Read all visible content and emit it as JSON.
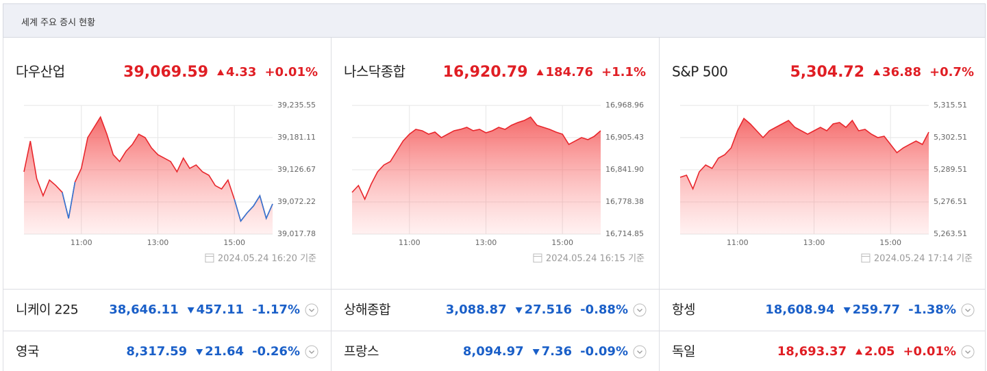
{
  "header": {
    "title": "세계 주요 증시 현황"
  },
  "panels": [
    {
      "name": "다우산업",
      "price": "39,069.59",
      "direction": "up",
      "change": "4.33",
      "percent": "+0.01%",
      "timestamp": "2024.05.24 16:20 기준"
    },
    {
      "name": "나스닥종합",
      "price": "16,920.79",
      "direction": "up",
      "change": "184.76",
      "percent": "+1.1%",
      "timestamp": "2024.05.24 16:15 기준"
    },
    {
      "name": "S&P 500",
      "price": "5,304.72",
      "direction": "up",
      "change": "36.88",
      "percent": "+0.7%",
      "timestamp": "2024.05.24 17:14 기준"
    }
  ],
  "chart_data": [
    {
      "type": "line",
      "x": [
        "09:30",
        "09:40",
        "09:50",
        "10:00",
        "10:10",
        "10:20",
        "10:30",
        "10:40",
        "10:50",
        "11:00",
        "11:10",
        "11:20",
        "11:30",
        "11:40",
        "11:50",
        "12:00",
        "12:10",
        "12:20",
        "12:30",
        "12:40",
        "12:50",
        "13:00",
        "13:10",
        "13:20",
        "13:30",
        "13:40",
        "13:50",
        "14:00",
        "14:10",
        "14:20",
        "14:30",
        "14:40",
        "14:50",
        "15:00",
        "15:10",
        "15:20",
        "15:30",
        "15:40",
        "15:50",
        "16:00"
      ],
      "series": [
        {
          "color": "#e8262c",
          "values": [
            39123.2,
            39175.3,
            39111.6,
            39082.7,
            39109.3,
            39100.0,
            39088.5,
            39044.4,
            39105.8,
            39129.0,
            39181.1,
            39198.5,
            39215.9,
            39186.9,
            39152.2,
            39140.6,
            39158.0,
            39169.5,
            39186.9,
            39181.1,
            39163.7,
            39152.2,
            39146.4,
            39140.6,
            39123.2,
            39146.4,
            39129.0,
            39134.8,
            39123.2,
            39117.4,
            39100.0,
            39094.2,
            39109.3,
            39076.9,
            39039.8,
            39053.7,
            39065.3,
            39082.7,
            39044.4,
            39068.8
          ]
        },
        {
          "color": "#2f78d8",
          "values": [
            null,
            null,
            null,
            null,
            null,
            null,
            39088.5,
            39044.4,
            39105.8,
            null,
            null,
            null,
            null,
            null,
            null,
            null,
            null,
            null,
            null,
            null,
            null,
            null,
            null,
            null,
            null,
            null,
            null,
            null,
            null,
            null,
            null,
            null,
            null,
            39076.9,
            39039.8,
            39053.7,
            39065.3,
            39082.7,
            39044.4,
            39068.8
          ]
        }
      ],
      "xlim": [
        "09:30",
        "16:00"
      ],
      "xticks": [
        "11:00",
        "13:00",
        "15:00"
      ],
      "ylim": [
        39017.78,
        39235.55
      ],
      "yticks": [
        {
          "value": 39017.78,
          "label": "39,017.78"
        },
        {
          "value": 39072.22,
          "label": "39,072.22"
        },
        {
          "value": 39126.67,
          "label": "39,126.67"
        },
        {
          "value": 39181.11,
          "label": "39,181.11"
        },
        {
          "value": 39235.55,
          "label": "39,235.55"
        }
      ]
    },
    {
      "type": "line",
      "x": [
        "09:30",
        "09:40",
        "09:50",
        "10:00",
        "10:10",
        "10:20",
        "10:30",
        "10:40",
        "10:50",
        "11:00",
        "11:10",
        "11:20",
        "11:30",
        "11:40",
        "11:50",
        "12:00",
        "12:10",
        "12:20",
        "12:30",
        "12:40",
        "12:50",
        "13:00",
        "13:10",
        "13:20",
        "13:30",
        "13:40",
        "13:50",
        "14:00",
        "14:10",
        "14:20",
        "14:30",
        "14:40",
        "14:50",
        "15:00",
        "15:10",
        "15:20",
        "15:30",
        "15:40",
        "15:50",
        "16:00"
      ],
      "series": [
        {
          "color": "#e8262c",
          "values": [
            16797.3,
            16810.8,
            16783.8,
            16813.5,
            16837.9,
            16851.4,
            16858.1,
            16878.4,
            16898.7,
            16912.2,
            16921.7,
            16919.0,
            16912.2,
            16916.3,
            16905.4,
            16912.2,
            16919.0,
            16921.7,
            16925.7,
            16919.0,
            16921.7,
            16914.9,
            16919.0,
            16925.7,
            16921.7,
            16929.8,
            16935.2,
            16939.2,
            16946.0,
            16929.8,
            16925.7,
            16921.7,
            16916.3,
            16912.2,
            16892.0,
            16898.7,
            16905.4,
            16901.4,
            16908.1,
            16919.0
          ]
        }
      ],
      "xlim": [
        "09:30",
        "16:00"
      ],
      "xticks": [
        "11:00",
        "13:00",
        "15:00"
      ],
      "ylim": [
        16714.85,
        16968.96
      ],
      "yticks": [
        {
          "value": 16714.85,
          "label": "16,714.85"
        },
        {
          "value": 16778.38,
          "label": "16,778.38"
        },
        {
          "value": 16841.9,
          "label": "16,841.90"
        },
        {
          "value": 16905.43,
          "label": "16,905.43"
        },
        {
          "value": 16968.96,
          "label": "16,968.96"
        }
      ]
    },
    {
      "type": "line",
      "x": [
        "09:30",
        "09:40",
        "09:50",
        "10:00",
        "10:10",
        "10:20",
        "10:30",
        "10:40",
        "10:50",
        "11:00",
        "11:10",
        "11:20",
        "11:30",
        "11:40",
        "11:50",
        "12:00",
        "12:10",
        "12:20",
        "12:30",
        "12:40",
        "12:50",
        "13:00",
        "13:10",
        "13:20",
        "13:30",
        "13:40",
        "13:50",
        "14:00",
        "14:10",
        "14:20",
        "14:30",
        "14:40",
        "14:50",
        "15:00",
        "15:10",
        "15:20",
        "15:30",
        "15:40",
        "15:50",
        "16:00"
      ],
      "series": [
        {
          "color": "#e8262c",
          "values": [
            5286.47,
            5287.3,
            5281.77,
            5288.68,
            5291.45,
            5290.06,
            5294.21,
            5295.6,
            5298.36,
            5305.28,
            5310.26,
            5308.04,
            5305.28,
            5302.51,
            5305.28,
            5306.66,
            5308.04,
            5309.43,
            5306.66,
            5305.28,
            5303.89,
            5305.28,
            5306.66,
            5305.28,
            5308.04,
            5308.6,
            5306.66,
            5309.43,
            5305.28,
            5305.83,
            5303.89,
            5302.51,
            5303.06,
            5299.75,
            5296.43,
            5298.36,
            5299.75,
            5301.13,
            5299.75,
            5304.72
          ]
        }
      ],
      "xlim": [
        "09:30",
        "16:00"
      ],
      "xticks": [
        "11:00",
        "13:00",
        "15:00"
      ],
      "ylim": [
        5263.51,
        5315.51
      ],
      "yticks": [
        {
          "value": 5263.51,
          "label": "5,263.51"
        },
        {
          "value": 5276.51,
          "label": "5,276.51"
        },
        {
          "value": 5289.51,
          "label": "5,289.51"
        },
        {
          "value": 5302.51,
          "label": "5,302.51"
        },
        {
          "value": 5315.51,
          "label": "5,315.51"
        }
      ]
    }
  ],
  "markets": [
    {
      "name": "니케이 225",
      "price": "38,646.11",
      "direction": "down",
      "change": "457.11",
      "percent": "-1.17%"
    },
    {
      "name": "상해종합",
      "price": "3,088.87",
      "direction": "down",
      "change": "27.516",
      "percent": "-0.88%"
    },
    {
      "name": "항셍",
      "price": "18,608.94",
      "direction": "down",
      "change": "259.77",
      "percent": "-1.38%"
    },
    {
      "name": "영국",
      "price": "8,317.59",
      "direction": "down",
      "change": "21.64",
      "percent": "-0.26%"
    },
    {
      "name": "프랑스",
      "price": "8,094.97",
      "direction": "down",
      "change": "7.36",
      "percent": "-0.09%"
    },
    {
      "name": "독일",
      "price": "18,693.37",
      "direction": "up",
      "change": "2.05",
      "percent": "+0.01%"
    }
  ]
}
